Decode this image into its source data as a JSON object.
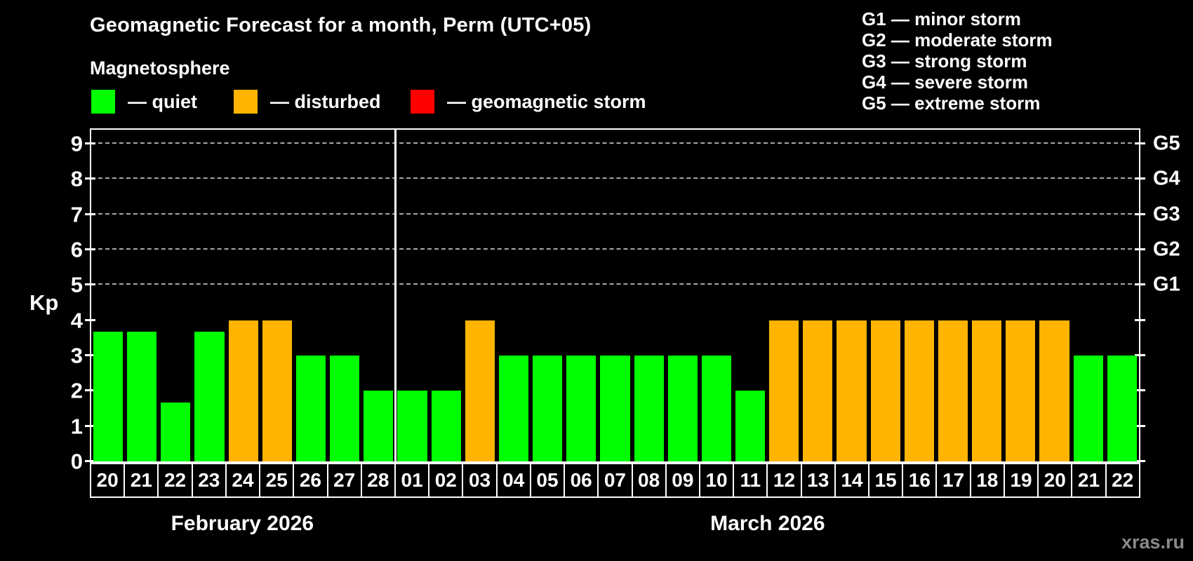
{
  "title": "Geomagnetic Forecast for a month, Perm (UTC+05)",
  "subtitle": "Magnetosphere",
  "legend": {
    "items": [
      {
        "name": "quiet",
        "label": "— quiet",
        "color": "#00ff00"
      },
      {
        "name": "disturbed",
        "label": "— disturbed",
        "color": "#ffb400"
      },
      {
        "name": "geomagnetic-storm",
        "label": "— geomagnetic storm",
        "color": "#ff0000"
      }
    ]
  },
  "storm_scale_legend": [
    "G1 — minor storm",
    "G2 — moderate storm",
    "G3 — strong storm",
    "G4 — severe storm",
    "G5 — extreme storm"
  ],
  "watermark": "xras.ru",
  "chart_data": {
    "type": "bar",
    "title": "Geomagnetic Forecast for a month, Perm (UTC+05)",
    "xlabel": "",
    "ylabel": "Kp",
    "ylim": [
      0,
      9.4
    ],
    "y_ticks": [
      0,
      1,
      2,
      3,
      4,
      5,
      6,
      7,
      8,
      9
    ],
    "grid": "dashed horizontal lines at Kp 5-9 only",
    "legend_position": "top",
    "g_levels": [
      {
        "label": "G1",
        "kp": 5
      },
      {
        "label": "G2",
        "kp": 6
      },
      {
        "label": "G3",
        "kp": 7
      },
      {
        "label": "G4",
        "kp": 8
      },
      {
        "label": "G5",
        "kp": 9
      }
    ],
    "months": [
      {
        "label": "February 2026",
        "days": 9
      },
      {
        "label": "March 2026",
        "days": 22
      }
    ],
    "categories": [
      "20",
      "21",
      "22",
      "23",
      "24",
      "25",
      "26",
      "27",
      "28",
      "01",
      "02",
      "03",
      "04",
      "05",
      "06",
      "07",
      "08",
      "09",
      "10",
      "11",
      "12",
      "13",
      "14",
      "15",
      "16",
      "17",
      "18",
      "19",
      "20",
      "21",
      "22"
    ],
    "values": [
      3.67,
      3.67,
      1.67,
      3.67,
      4,
      4,
      3,
      3,
      2,
      2,
      2,
      4,
      3,
      3,
      3,
      3,
      3,
      3,
      3,
      2,
      4,
      4,
      4,
      4,
      4,
      4,
      4,
      4,
      4,
      3,
      3
    ],
    "states": [
      "quiet",
      "quiet",
      "quiet",
      "quiet",
      "disturbed",
      "disturbed",
      "quiet",
      "quiet",
      "quiet",
      "quiet",
      "quiet",
      "disturbed",
      "quiet",
      "quiet",
      "quiet",
      "quiet",
      "quiet",
      "quiet",
      "quiet",
      "quiet",
      "disturbed",
      "disturbed",
      "disturbed",
      "disturbed",
      "disturbed",
      "disturbed",
      "disturbed",
      "disturbed",
      "disturbed",
      "quiet",
      "quiet"
    ],
    "state_colors": {
      "quiet": "#00ff00",
      "disturbed": "#ffb400",
      "storm": "#ff0000"
    }
  }
}
